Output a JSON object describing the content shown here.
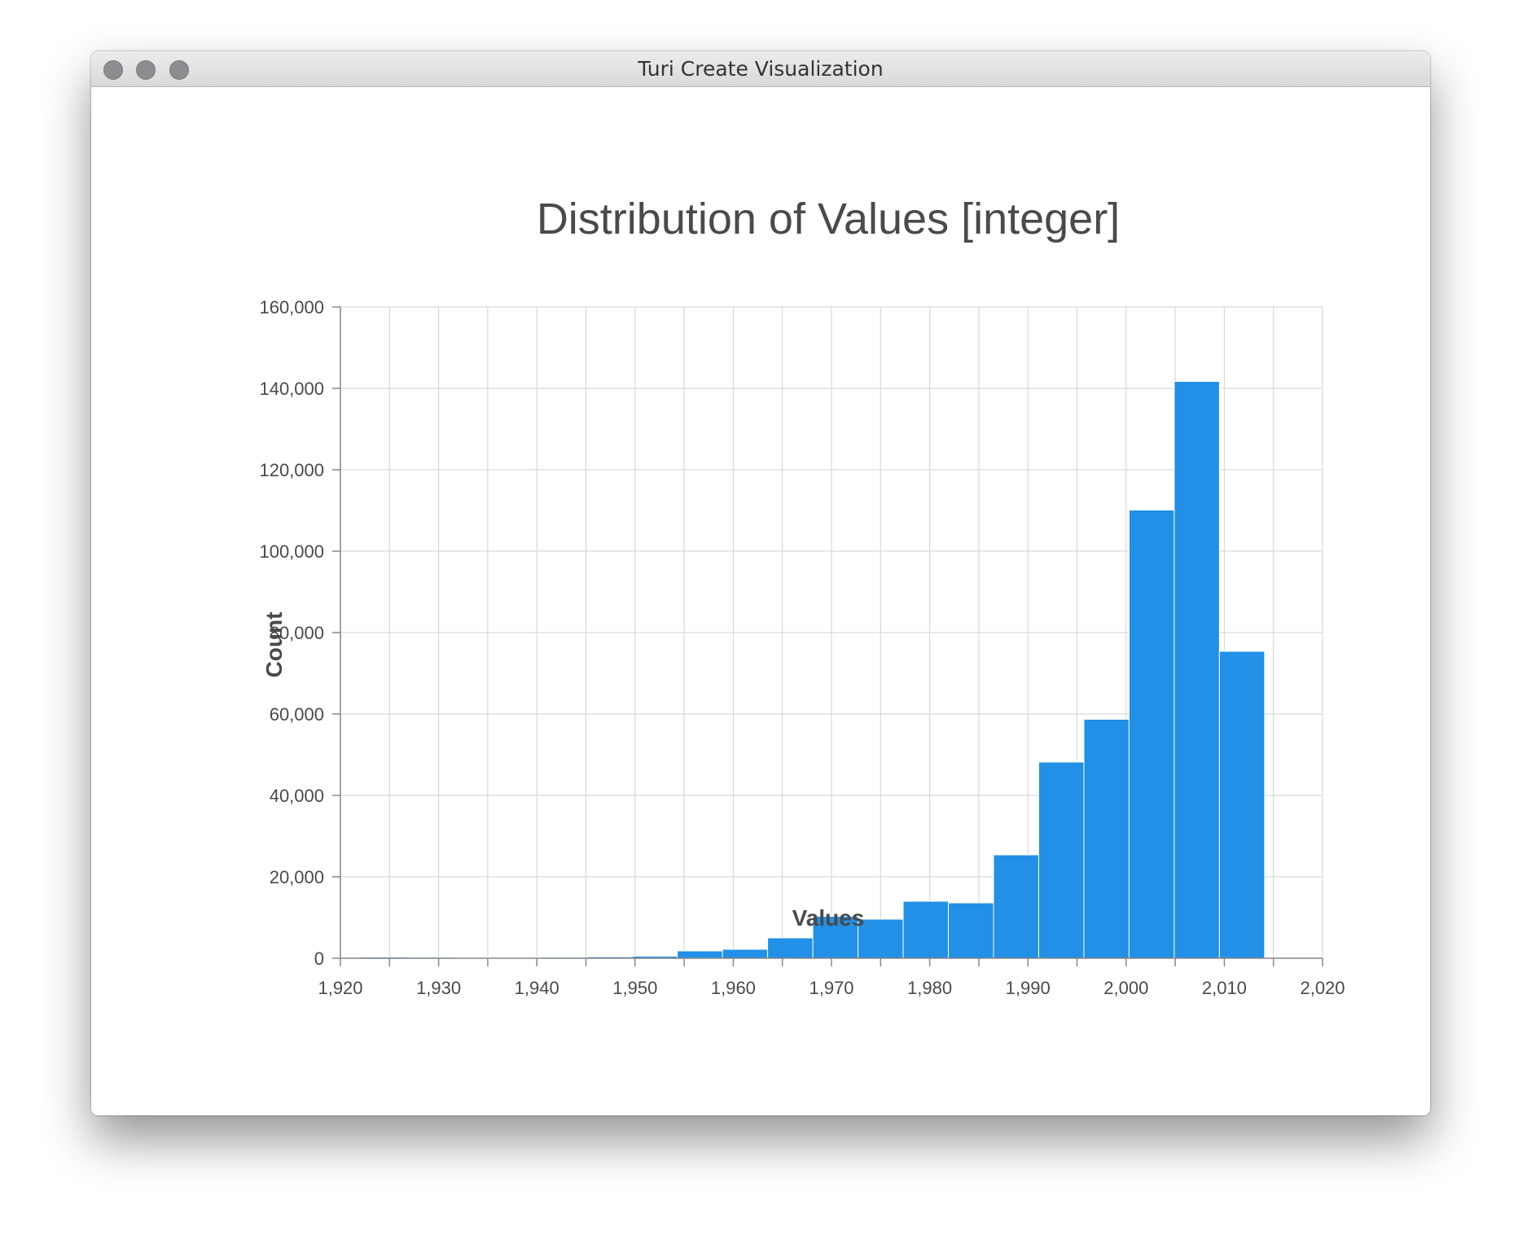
{
  "window": {
    "title": "Turi Create Visualization"
  },
  "colors": {
    "bar": "#2190e6",
    "bar_stroke": "#ffffff",
    "grid": "#d9d9d9",
    "axis": "#888888",
    "text": "#4a4a4a"
  },
  "chart_data": {
    "type": "bar",
    "title": "Distribution of Values [integer]",
    "xlabel": "Values",
    "ylabel": "Count",
    "xlim": [
      1920,
      2020
    ],
    "ylim": [
      0,
      160000
    ],
    "x_ticks": [
      1920,
      1930,
      1940,
      1950,
      1960,
      1970,
      1980,
      1990,
      2000,
      2010,
      2020
    ],
    "x_tick_labels": [
      "1,920",
      "1,930",
      "1,940",
      "1,950",
      "1,960",
      "1,970",
      "1,980",
      "1,990",
      "2,000",
      "2,010",
      "2,020"
    ],
    "y_ticks": [
      0,
      20000,
      40000,
      60000,
      80000,
      100000,
      120000,
      140000,
      160000
    ],
    "y_tick_labels": [
      "0",
      "20,000",
      "40,000",
      "60,000",
      "80,000",
      "100,000",
      "120,000",
      "140,000",
      "160,000"
    ],
    "grid": true,
    "bins": [
      {
        "start": 1922.1,
        "end": 1926.7,
        "count": 300
      },
      {
        "start": 1926.7,
        "end": 1931.3,
        "count": 250
      },
      {
        "start": 1931.3,
        "end": 1935.9,
        "count": 200
      },
      {
        "start": 1935.9,
        "end": 1940.5,
        "count": 200
      },
      {
        "start": 1940.5,
        "end": 1945.1,
        "count": 250
      },
      {
        "start": 1945.1,
        "end": 1949.7,
        "count": 350
      },
      {
        "start": 1949.7,
        "end": 1954.3,
        "count": 500
      },
      {
        "start": 1954.3,
        "end": 1958.9,
        "count": 1800
      },
      {
        "start": 1958.9,
        "end": 1963.5,
        "count": 2200
      },
      {
        "start": 1963.5,
        "end": 1968.1,
        "count": 5000
      },
      {
        "start": 1968.1,
        "end": 1972.7,
        "count": 10300
      },
      {
        "start": 1972.7,
        "end": 1977.3,
        "count": 9600
      },
      {
        "start": 1977.3,
        "end": 1981.9,
        "count": 14000
      },
      {
        "start": 1981.9,
        "end": 1986.5,
        "count": 13600
      },
      {
        "start": 1986.5,
        "end": 1991.1,
        "count": 25400
      },
      {
        "start": 1991.1,
        "end": 1995.7,
        "count": 48200
      },
      {
        "start": 1995.7,
        "end": 2000.3,
        "count": 58700
      },
      {
        "start": 2000.3,
        "end": 2004.9,
        "count": 110100
      },
      {
        "start": 2004.9,
        "end": 2009.5,
        "count": 141700
      },
      {
        "start": 2009.5,
        "end": 2014.1,
        "count": 75400
      }
    ]
  }
}
